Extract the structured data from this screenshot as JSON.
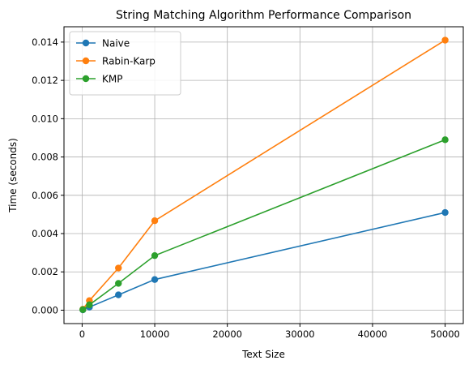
{
  "chart_data": {
    "type": "line",
    "title": "String Matching Algorithm Performance Comparison",
    "xlabel": "Text Size",
    "ylabel": "Time (seconds)",
    "x": [
      100,
      1000,
      5000,
      10000,
      50000
    ],
    "xlim": [
      -2500,
      52500
    ],
    "ylim": [
      -0.0007,
      0.0148
    ],
    "xticks": [
      0,
      10000,
      20000,
      30000,
      40000,
      50000
    ],
    "xtick_labels": [
      "0",
      "10000",
      "20000",
      "30000",
      "40000",
      "50000"
    ],
    "yticks": [
      0,
      0.002,
      0.004,
      0.006,
      0.008,
      0.01,
      0.012,
      0.014
    ],
    "ytick_labels": [
      "0.000",
      "0.002",
      "0.004",
      "0.006",
      "0.008",
      "0.010",
      "0.012",
      "0.014"
    ],
    "grid": true,
    "legend": "upper left",
    "series": [
      {
        "name": "Naive",
        "color": "#1f77b4",
        "values": [
          2e-05,
          0.00016,
          0.0008,
          0.0016,
          0.0051
        ]
      },
      {
        "name": "Rabin-Karp",
        "color": "#ff7f0e",
        "values": [
          5e-05,
          0.0005,
          0.0022,
          0.00467,
          0.0141
        ]
      },
      {
        "name": "KMP",
        "color": "#2ca02c",
        "values": [
          3e-05,
          0.00028,
          0.0014,
          0.00285,
          0.0089
        ]
      }
    ]
  }
}
